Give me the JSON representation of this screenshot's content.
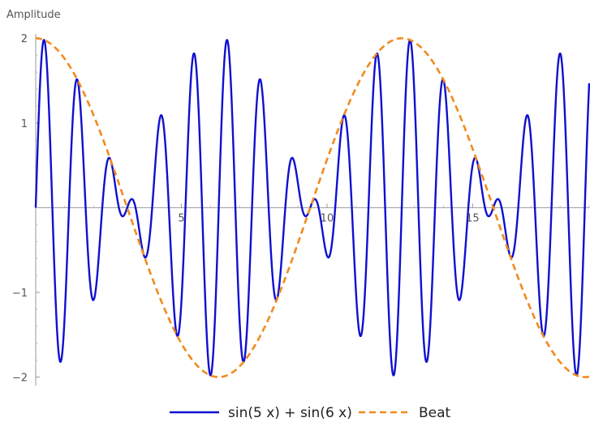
{
  "chart_data": {
    "type": "line",
    "title": "",
    "xlabel": "",
    "ylabel": "Amplitude",
    "xlim": [
      0,
      19
    ],
    "ylim": [
      -2.1,
      2.05
    ],
    "x_ticks": [
      5,
      10,
      15
    ],
    "y_ticks": [
      -2,
      -1,
      1,
      2
    ],
    "grid": false,
    "legend_position": "bottom-center",
    "series": [
      {
        "name": "sin(5 x) + sin(6 x)",
        "function": "sin(5x) + sin(6x)",
        "color": "#1010d0",
        "style": "solid"
      },
      {
        "name": "Beat",
        "function": "2 cos(x/2)",
        "color": "#f28a1e",
        "style": "dashed"
      }
    ]
  }
}
